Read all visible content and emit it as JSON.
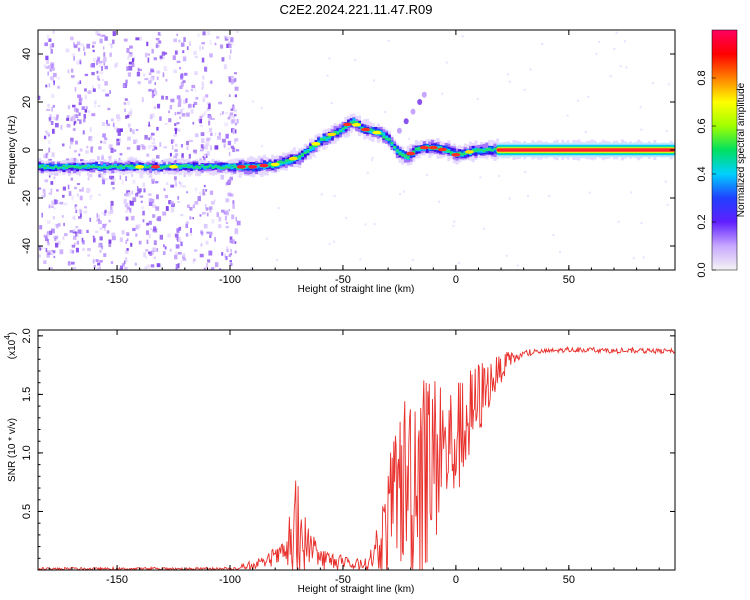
{
  "figure": {
    "title": "C2E2.2024.221.11.47.R09"
  },
  "chart_data": [
    {
      "type": "heatmap",
      "name": "spectrogram",
      "xlabel": "Height of straight line (km)",
      "ylabel": "Frequency (Hz)",
      "xlim": [
        -185,
        97
      ],
      "ylim": [
        -50,
        50
      ],
      "xticks": [
        -150,
        -100,
        -50,
        0,
        50
      ],
      "yticks": [
        40,
        20,
        0,
        -20,
        -40
      ],
      "colorbar": {
        "label": "Normalized spectral amplitude",
        "range": [
          0.0,
          1.0
        ],
        "ticks": [
          0.0,
          0.2,
          0.4,
          0.6,
          0.8
        ],
        "tick_labels": [
          "0.0",
          "0.2",
          "0.4",
          "0.6",
          "0.8"
        ],
        "colors": [
          "#f4f4f4",
          "#c8a8ff",
          "#6020ff",
          "#2040ff",
          "#00d0ff",
          "#00e060",
          "#a0ff00",
          "#ffff00",
          "#ff8000",
          "#ff0000",
          "#ff0060"
        ]
      },
      "ridge": {
        "x": [
          -185,
          -150,
          -120,
          -100,
          -90,
          -80,
          -70,
          -60,
          -52,
          -46,
          -42,
          -38,
          -34,
          -30,
          -26,
          -22,
          -18,
          -14,
          -10,
          -5,
          0,
          5,
          10,
          18,
          97
        ],
        "y": [
          -7,
          -7,
          -7,
          -7,
          -7,
          -6,
          -3,
          4,
          8,
          12,
          9,
          8,
          7,
          4,
          -1,
          -3,
          0,
          1,
          1,
          0,
          -2,
          -1,
          0,
          0,
          0
        ]
      },
      "noise_region": [
        -185,
        -97
      ]
    },
    {
      "type": "line",
      "name": "snr",
      "xlabel": "Height of straight line (km)",
      "ylabel": "SNR (10 * v/v)",
      "y_scale_label": "(x10",
      "y_scale_exponent": "4",
      "xlim": [
        -185,
        97
      ],
      "ylim": [
        0,
        2.05
      ],
      "xticks": [
        -150,
        -100,
        -50,
        0,
        50
      ],
      "yticks": [
        0.5,
        1.0,
        1.5,
        2.0
      ],
      "ytick_labels": [
        "0.5",
        "1.0",
        "1.5",
        "2.0"
      ],
      "series": [
        {
          "name": "SNR",
          "color": "#e8302c",
          "envelope": {
            "x": [
              -185,
              -100,
              -92,
              -85,
              -75,
              -70,
              -65,
              -60,
              -55,
              -50,
              -45,
              -40,
              -35,
              -30,
              -25,
              -20,
              -16,
              -14,
              -12,
              -8,
              -5,
              -2,
              0,
              5,
              10,
              15,
              20,
              25,
              30,
              35,
              40,
              50,
              60,
              70,
              80,
              97
            ],
            "base": [
              0.01,
              0.01,
              0.03,
              0.06,
              0.15,
              0.25,
              0.2,
              0.1,
              0.08,
              0.05,
              0.04,
              0.05,
              0.15,
              0.4,
              0.7,
              0.8,
              0.9,
              0.85,
              0.9,
              0.95,
              1.0,
              1.05,
              1.1,
              1.25,
              1.45,
              1.6,
              1.72,
              1.8,
              1.84,
              1.86,
              1.87,
              1.88,
              1.88,
              1.87,
              1.87,
              1.87
            ],
            "spread": [
              0.01,
              0.01,
              0.03,
              0.04,
              0.1,
              0.5,
              0.15,
              0.1,
              0.08,
              0.05,
              0.04,
              0.05,
              0.15,
              0.5,
              0.7,
              0.9,
              1.1,
              0.9,
              0.85,
              0.7,
              0.6,
              0.55,
              0.5,
              0.45,
              0.35,
              0.2,
              0.12,
              0.05,
              0.03,
              0.02,
              0.02,
              0.02,
              0.02,
              0.02,
              0.02,
              0.02
            ]
          }
        }
      ]
    }
  ]
}
